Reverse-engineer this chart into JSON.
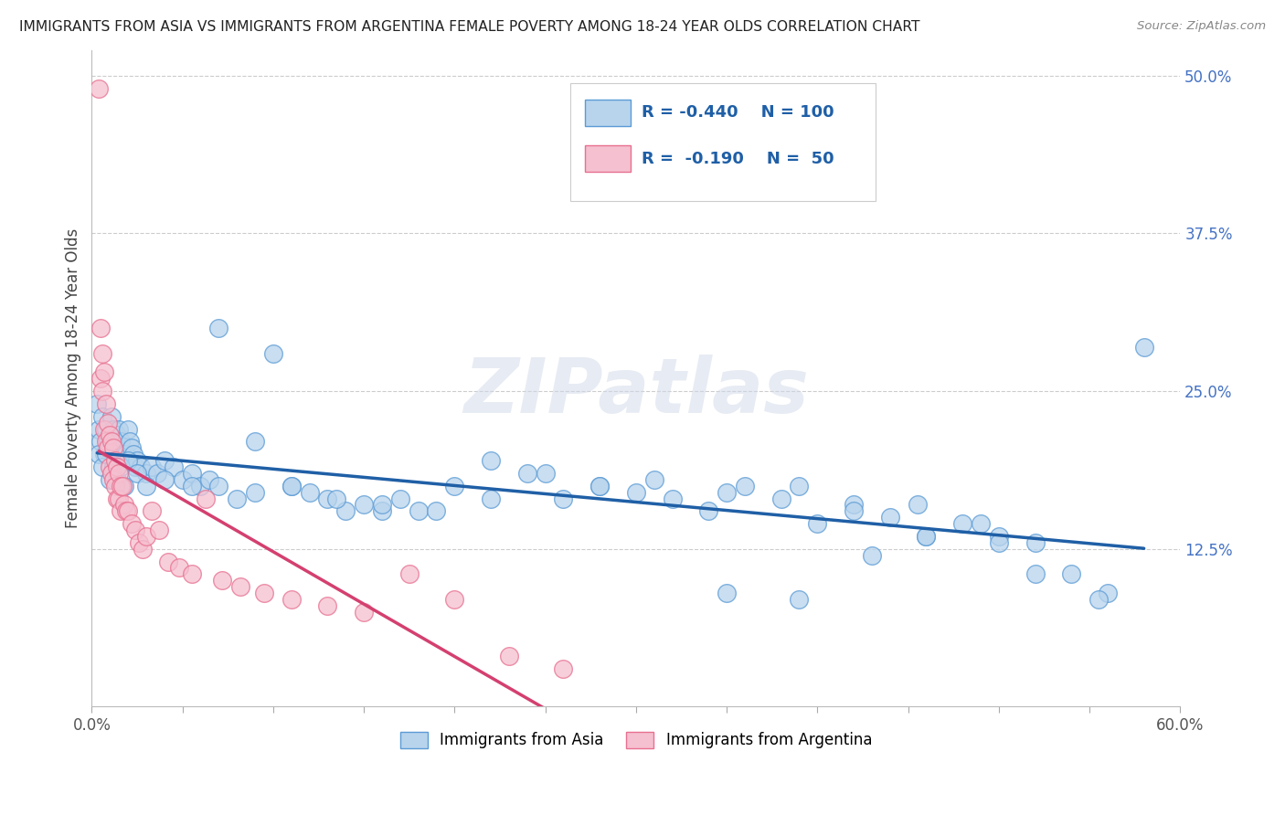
{
  "title": "IMMIGRANTS FROM ASIA VS IMMIGRANTS FROM ARGENTINA FEMALE POVERTY AMONG 18-24 YEAR OLDS CORRELATION CHART",
  "source": "Source: ZipAtlas.com",
  "ylabel": "Female Poverty Among 18-24 Year Olds",
  "xlim": [
    0.0,
    0.6
  ],
  "ylim": [
    0.0,
    0.52
  ],
  "yticks_right": [
    0.125,
    0.25,
    0.375,
    0.5
  ],
  "ytick_right_labels": [
    "12.5%",
    "25.0%",
    "37.5%",
    "50.0%"
  ],
  "legend_r_asia": "-0.440",
  "legend_n_asia": "100",
  "legend_r_arg": "-0.190",
  "legend_n_arg": "50",
  "blue_scatter_face": "#b8d4ed",
  "blue_scatter_edge": "#5b9bd5",
  "pink_scatter_face": "#f5c0d0",
  "pink_scatter_edge": "#e87090",
  "trend_blue": "#1f5fa6",
  "trend_pink": "#d44070",
  "background_color": "#ffffff",
  "watermark": "ZIPatlas",
  "asia_x": [
    0.003,
    0.004,
    0.005,
    0.006,
    0.007,
    0.008,
    0.009,
    0.01,
    0.011,
    0.012,
    0.013,
    0.014,
    0.015,
    0.016,
    0.017,
    0.018,
    0.019,
    0.02,
    0.021,
    0.022,
    0.023,
    0.024,
    0.025,
    0.027,
    0.03,
    0.033,
    0.036,
    0.04,
    0.045,
    0.05,
    0.055,
    0.06,
    0.065,
    0.07,
    0.08,
    0.09,
    0.1,
    0.11,
    0.12,
    0.13,
    0.14,
    0.15,
    0.16,
    0.17,
    0.18,
    0.2,
    0.22,
    0.24,
    0.26,
    0.28,
    0.3,
    0.32,
    0.34,
    0.36,
    0.38,
    0.4,
    0.42,
    0.44,
    0.46,
    0.48,
    0.5,
    0.52,
    0.54,
    0.56,
    0.58,
    0.004,
    0.006,
    0.008,
    0.01,
    0.012,
    0.014,
    0.016,
    0.018,
    0.02,
    0.025,
    0.03,
    0.04,
    0.055,
    0.07,
    0.09,
    0.11,
    0.135,
    0.16,
    0.19,
    0.22,
    0.25,
    0.28,
    0.31,
    0.35,
    0.39,
    0.42,
    0.455,
    0.49,
    0.52,
    0.555,
    0.5,
    0.46,
    0.43,
    0.39,
    0.35
  ],
  "asia_y": [
    0.24,
    0.22,
    0.21,
    0.23,
    0.2,
    0.22,
    0.21,
    0.215,
    0.23,
    0.22,
    0.21,
    0.215,
    0.22,
    0.21,
    0.2,
    0.195,
    0.2,
    0.22,
    0.21,
    0.205,
    0.2,
    0.19,
    0.195,
    0.19,
    0.185,
    0.19,
    0.185,
    0.195,
    0.19,
    0.18,
    0.185,
    0.175,
    0.18,
    0.175,
    0.165,
    0.17,
    0.28,
    0.175,
    0.17,
    0.165,
    0.155,
    0.16,
    0.155,
    0.165,
    0.155,
    0.175,
    0.165,
    0.185,
    0.165,
    0.175,
    0.17,
    0.165,
    0.155,
    0.175,
    0.165,
    0.145,
    0.16,
    0.15,
    0.135,
    0.145,
    0.135,
    0.105,
    0.105,
    0.09,
    0.285,
    0.2,
    0.19,
    0.2,
    0.18,
    0.19,
    0.18,
    0.19,
    0.175,
    0.195,
    0.185,
    0.175,
    0.18,
    0.175,
    0.3,
    0.21,
    0.175,
    0.165,
    0.16,
    0.155,
    0.195,
    0.185,
    0.175,
    0.18,
    0.17,
    0.175,
    0.155,
    0.16,
    0.145,
    0.13,
    0.085,
    0.13,
    0.135,
    0.12,
    0.085,
    0.09
  ],
  "arg_x": [
    0.004,
    0.005,
    0.005,
    0.006,
    0.006,
    0.007,
    0.007,
    0.008,
    0.008,
    0.009,
    0.009,
    0.01,
    0.01,
    0.011,
    0.011,
    0.012,
    0.012,
    0.013,
    0.013,
    0.014,
    0.014,
    0.015,
    0.015,
    0.016,
    0.016,
    0.017,
    0.018,
    0.019,
    0.02,
    0.022,
    0.024,
    0.026,
    0.028,
    0.03,
    0.033,
    0.037,
    0.042,
    0.048,
    0.055,
    0.063,
    0.072,
    0.082,
    0.095,
    0.11,
    0.13,
    0.15,
    0.175,
    0.2,
    0.23,
    0.26
  ],
  "arg_y": [
    0.49,
    0.3,
    0.26,
    0.28,
    0.25,
    0.265,
    0.22,
    0.24,
    0.21,
    0.225,
    0.205,
    0.215,
    0.19,
    0.21,
    0.185,
    0.205,
    0.18,
    0.195,
    0.175,
    0.19,
    0.165,
    0.185,
    0.165,
    0.175,
    0.155,
    0.175,
    0.16,
    0.155,
    0.155,
    0.145,
    0.14,
    0.13,
    0.125,
    0.135,
    0.155,
    0.14,
    0.115,
    0.11,
    0.105,
    0.165,
    0.1,
    0.095,
    0.09,
    0.085,
    0.08,
    0.075,
    0.105,
    0.085,
    0.04,
    0.03
  ]
}
